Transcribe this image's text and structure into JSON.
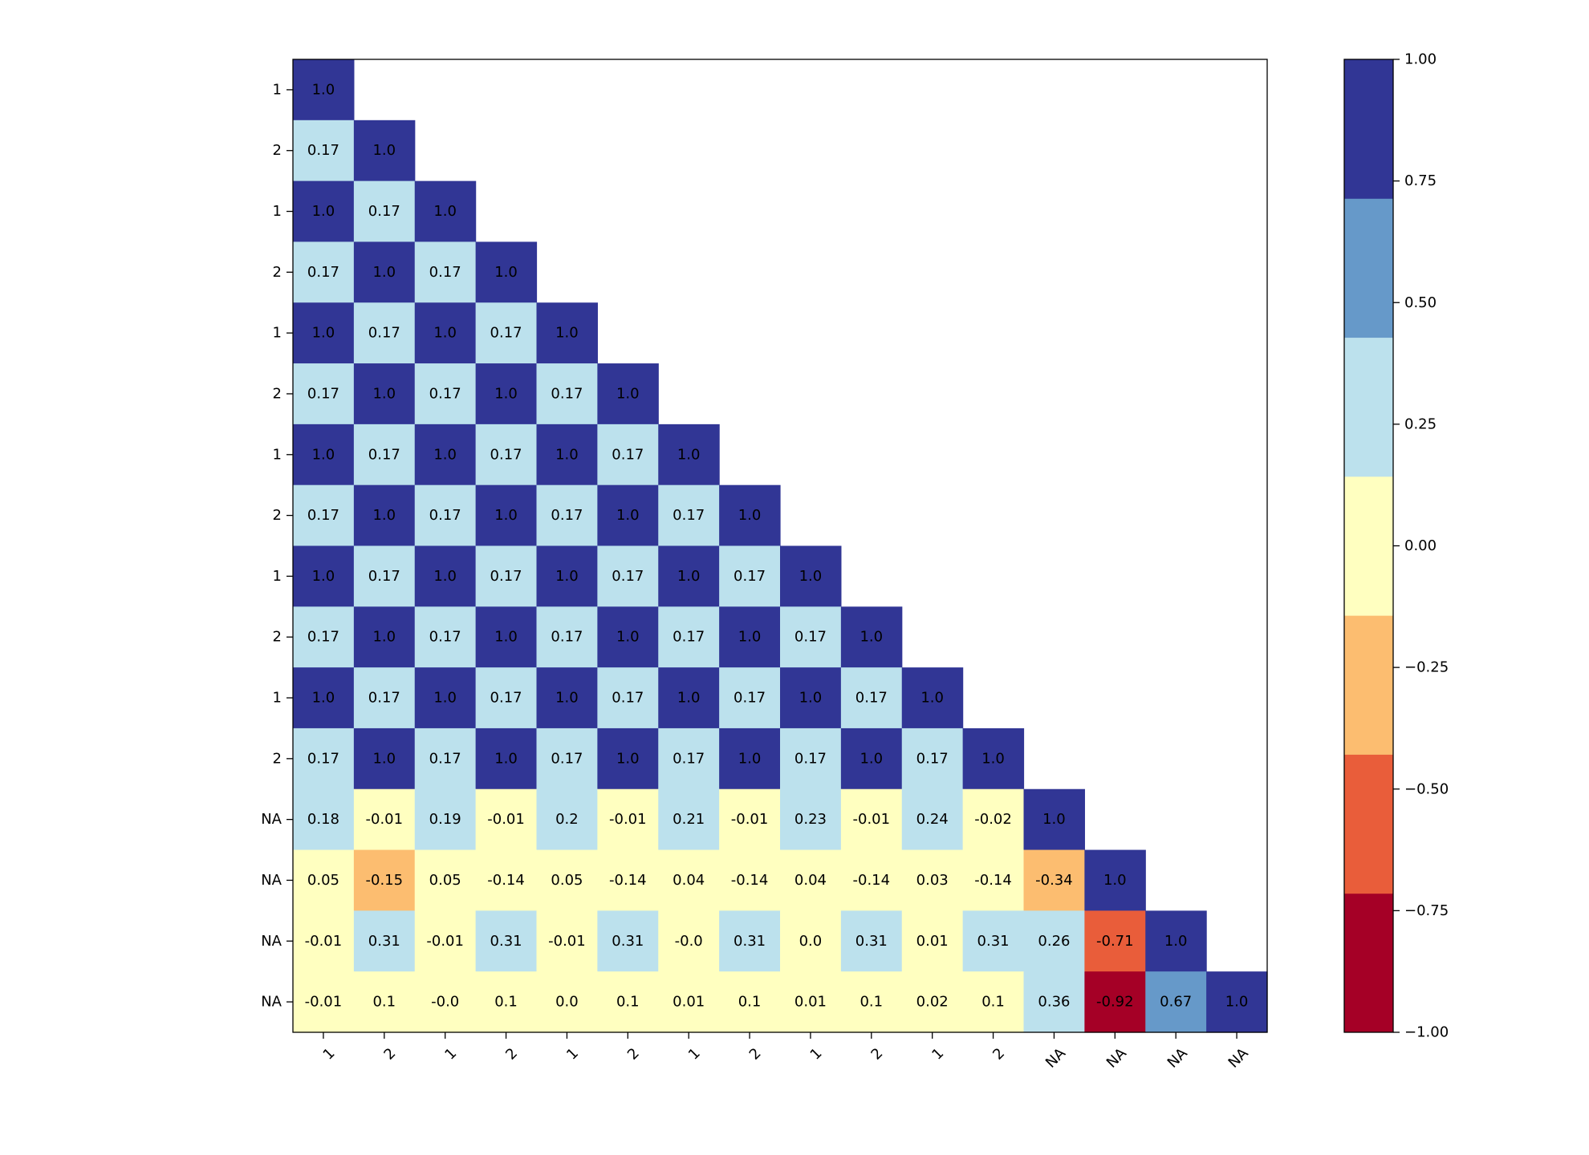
{
  "chart_data": {
    "type": "heatmap",
    "title": "",
    "xlabel": "",
    "ylabel": "",
    "mask": "lower-triangle",
    "row_labels": [
      "1",
      "2",
      "1",
      "2",
      "1",
      "2",
      "1",
      "2",
      "1",
      "2",
      "1",
      "2",
      "NA",
      "NA",
      "NA",
      "NA"
    ],
    "col_labels": [
      "1",
      "2",
      "1",
      "2",
      "1",
      "2",
      "1",
      "2",
      "1",
      "2",
      "1",
      "2",
      "NA",
      "NA",
      "NA",
      "NA"
    ],
    "values": [
      [
        1.0
      ],
      [
        0.17,
        1.0
      ],
      [
        1.0,
        0.17,
        1.0
      ],
      [
        0.17,
        1.0,
        0.17,
        1.0
      ],
      [
        1.0,
        0.17,
        1.0,
        0.17,
        1.0
      ],
      [
        0.17,
        1.0,
        0.17,
        1.0,
        0.17,
        1.0
      ],
      [
        1.0,
        0.17,
        1.0,
        0.17,
        1.0,
        0.17,
        1.0
      ],
      [
        0.17,
        1.0,
        0.17,
        1.0,
        0.17,
        1.0,
        0.17,
        1.0
      ],
      [
        1.0,
        0.17,
        1.0,
        0.17,
        1.0,
        0.17,
        1.0,
        0.17,
        1.0
      ],
      [
        0.17,
        1.0,
        0.17,
        1.0,
        0.17,
        1.0,
        0.17,
        1.0,
        0.17,
        1.0
      ],
      [
        1.0,
        0.17,
        1.0,
        0.17,
        1.0,
        0.17,
        1.0,
        0.17,
        1.0,
        0.17,
        1.0
      ],
      [
        0.17,
        1.0,
        0.17,
        1.0,
        0.17,
        1.0,
        0.17,
        1.0,
        0.17,
        1.0,
        0.17,
        1.0
      ],
      [
        0.18,
        -0.01,
        0.19,
        -0.01,
        0.2,
        -0.01,
        0.21,
        -0.01,
        0.23,
        -0.01,
        0.24,
        -0.02,
        1.0
      ],
      [
        0.05,
        -0.15,
        0.05,
        -0.14,
        0.05,
        -0.14,
        0.04,
        -0.14,
        0.04,
        -0.14,
        0.03,
        -0.14,
        -0.34,
        1.0
      ],
      [
        -0.01,
        0.31,
        -0.01,
        0.31,
        -0.01,
        0.31,
        -0.0,
        0.31,
        0.0,
        0.31,
        0.01,
        0.31,
        0.26,
        -0.71,
        1.0
      ],
      [
        -0.01,
        0.1,
        -0.0,
        0.1,
        0.0,
        0.1,
        0.01,
        0.1,
        0.01,
        0.1,
        0.02,
        0.1,
        0.36,
        -0.92,
        0.67,
        1.0
      ]
    ],
    "cell_labels": [
      [
        "1.0"
      ],
      [
        "0.17",
        "1.0"
      ],
      [
        "1.0",
        "0.17",
        "1.0"
      ],
      [
        "0.17",
        "1.0",
        "0.17",
        "1.0"
      ],
      [
        "1.0",
        "0.17",
        "1.0",
        "0.17",
        "1.0"
      ],
      [
        "0.17",
        "1.0",
        "0.17",
        "1.0",
        "0.17",
        "1.0"
      ],
      [
        "1.0",
        "0.17",
        "1.0",
        "0.17",
        "1.0",
        "0.17",
        "1.0"
      ],
      [
        "0.17",
        "1.0",
        "0.17",
        "1.0",
        "0.17",
        "1.0",
        "0.17",
        "1.0"
      ],
      [
        "1.0",
        "0.17",
        "1.0",
        "0.17",
        "1.0",
        "0.17",
        "1.0",
        "0.17",
        "1.0"
      ],
      [
        "0.17",
        "1.0",
        "0.17",
        "1.0",
        "0.17",
        "1.0",
        "0.17",
        "1.0",
        "0.17",
        "1.0"
      ],
      [
        "1.0",
        "0.17",
        "1.0",
        "0.17",
        "1.0",
        "0.17",
        "1.0",
        "0.17",
        "1.0",
        "0.17",
        "1.0"
      ],
      [
        "0.17",
        "1.0",
        "0.17",
        "1.0",
        "0.17",
        "1.0",
        "0.17",
        "1.0",
        "0.17",
        "1.0",
        "0.17",
        "1.0"
      ],
      [
        "0.18",
        "-0.01",
        "0.19",
        "-0.01",
        "0.2",
        "-0.01",
        "0.21",
        "-0.01",
        "0.23",
        "-0.01",
        "0.24",
        "-0.02",
        "1.0"
      ],
      [
        "0.05",
        "-0.15",
        "0.05",
        "-0.14",
        "0.05",
        "-0.14",
        "0.04",
        "-0.14",
        "0.04",
        "-0.14",
        "0.03",
        "-0.14",
        "-0.34",
        "1.0"
      ],
      [
        "-0.01",
        "0.31",
        "-0.01",
        "0.31",
        "-0.01",
        "0.31",
        "-0.0",
        "0.31",
        "0.0",
        "0.31",
        "0.01",
        "0.31",
        "0.26",
        "-0.71",
        "1.0"
      ],
      [
        "-0.01",
        "0.1",
        "-0.0",
        "0.1",
        "0.0",
        "0.1",
        "0.01",
        "0.1",
        "0.01",
        "0.1",
        "0.02",
        "0.1",
        "0.36",
        "-0.92",
        "0.67",
        "1.0"
      ]
    ],
    "colorbar": {
      "vmin": -1.0,
      "vmax": 1.0,
      "bins": [
        {
          "from": -1.0,
          "to": -0.7142857,
          "color": "#a50026"
        },
        {
          "from": -0.7142857,
          "to": -0.4285714,
          "color": "#e95d3a"
        },
        {
          "from": -0.4285714,
          "to": -0.1428571,
          "color": "#fcbd70"
        },
        {
          "from": -0.1428571,
          "to": 0.1428571,
          "color": "#ffffc0"
        },
        {
          "from": 0.1428571,
          "to": 0.4285714,
          "color": "#bce1ed"
        },
        {
          "from": 0.4285714,
          "to": 0.7142857,
          "color": "#6699c9"
        },
        {
          "from": 0.7142857,
          "to": 1.0,
          "color": "#313695"
        }
      ],
      "ticks": [
        -1.0,
        -0.75,
        -0.5,
        -0.25,
        0.0,
        0.25,
        0.5,
        0.75,
        1.0
      ],
      "tick_labels": [
        "−1.00",
        "−0.75",
        "−0.50",
        "−0.25",
        "0.00",
        "0.25",
        "0.50",
        "0.75",
        "1.00"
      ]
    }
  }
}
